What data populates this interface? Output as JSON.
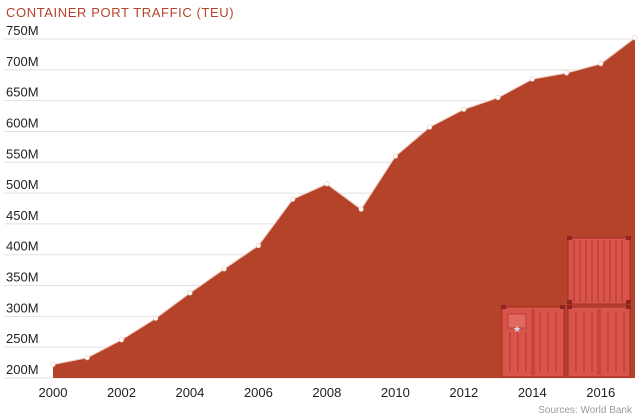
{
  "chart_data": {
    "type": "area",
    "title": "CONTAINER PORT TRAFFIC (TEU)",
    "source": "Sources: World Bank",
    "x": [
      2000,
      2001,
      2002,
      2003,
      2004,
      2005,
      2006,
      2007,
      2008,
      2009,
      2010,
      2011,
      2012,
      2013,
      2014,
      2015,
      2016,
      2017
    ],
    "values": [
      222,
      233,
      262,
      297,
      338,
      377,
      415,
      490,
      515,
      474,
      560,
      607,
      636,
      655,
      685,
      695,
      710,
      752
    ],
    "units": "millions of TEU",
    "ylim": [
      200,
      750
    ],
    "xlim": [
      2000,
      2017
    ],
    "y_ticks": [
      {
        "value": 200,
        "label": "200M"
      },
      {
        "value": 250,
        "label": "250M"
      },
      {
        "value": 300,
        "label": "300M"
      },
      {
        "value": 350,
        "label": "350M"
      },
      {
        "value": 400,
        "label": "400M"
      },
      {
        "value": 450,
        "label": "450M"
      },
      {
        "value": 500,
        "label": "500M"
      },
      {
        "value": 550,
        "label": "550M"
      },
      {
        "value": 600,
        "label": "600M"
      },
      {
        "value": 650,
        "label": "650M"
      },
      {
        "value": 700,
        "label": "700M"
      },
      {
        "value": 750,
        "label": "750M"
      }
    ],
    "x_ticks": [
      {
        "value": 2000,
        "label": "2000"
      },
      {
        "value": 2002,
        "label": "2002"
      },
      {
        "value": 2004,
        "label": "2004"
      },
      {
        "value": 2006,
        "label": "2006"
      },
      {
        "value": 2008,
        "label": "2008"
      },
      {
        "value": 2010,
        "label": "2010"
      },
      {
        "value": 2012,
        "label": "2012"
      },
      {
        "value": 2014,
        "label": "2014"
      },
      {
        "value": 2016,
        "label": "2016"
      }
    ],
    "grid": true,
    "colors": {
      "area": "#b5432a",
      "line": "#f2d6cc",
      "grid": "#e2e2e2",
      "title": "#b5432a",
      "container": "#d9544a",
      "container_edge": "#a52c26"
    },
    "decoration": "shipping-containers-icon"
  }
}
